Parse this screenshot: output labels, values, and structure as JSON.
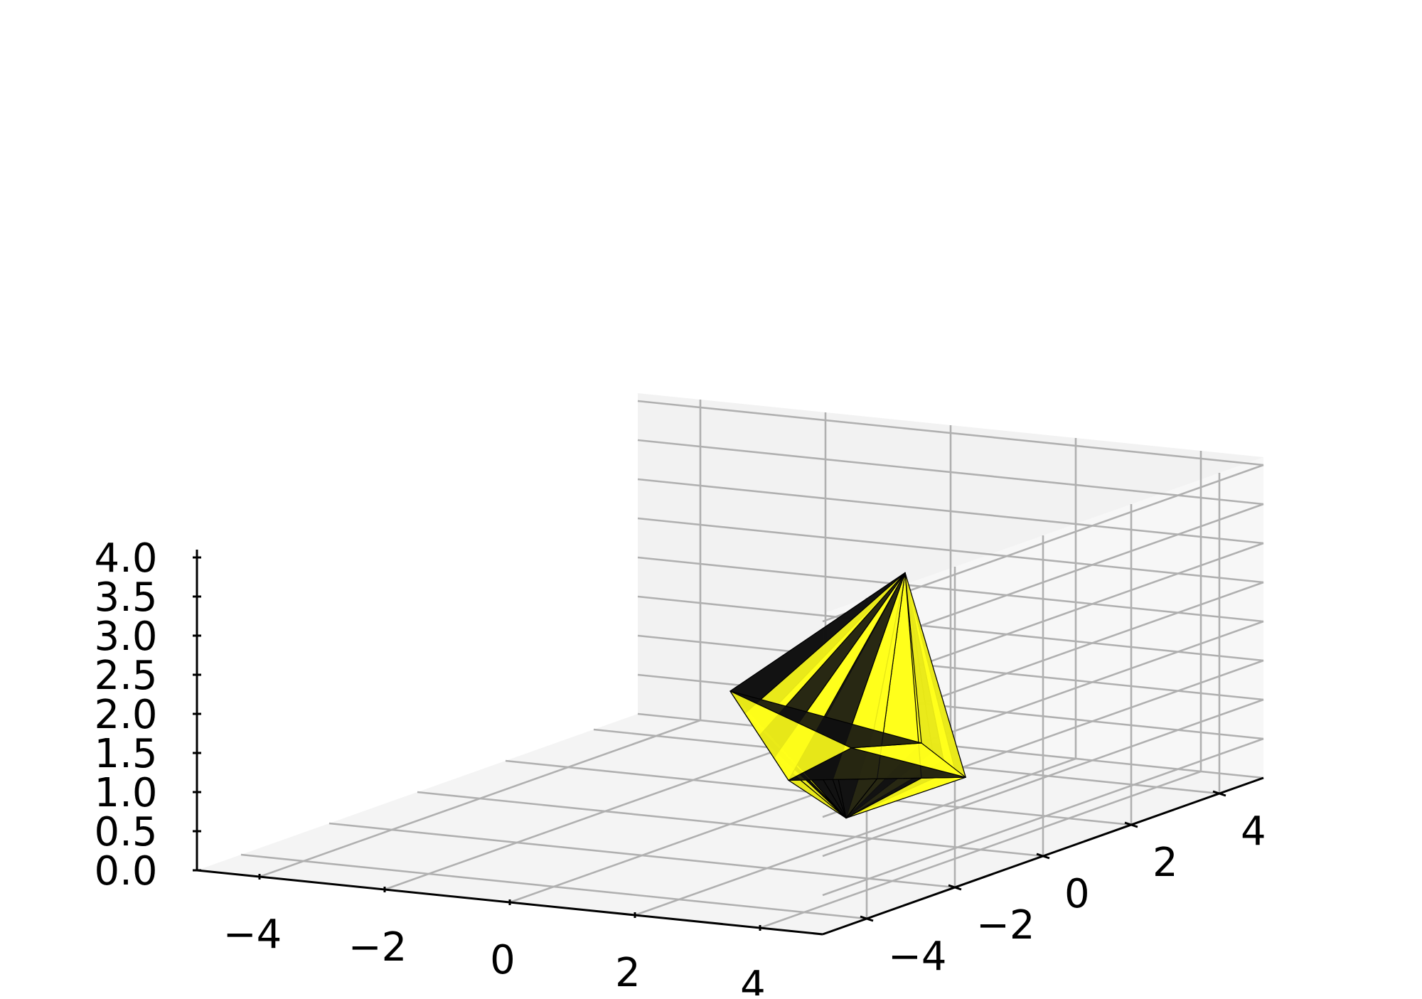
{
  "chart_data": {
    "type": "surface3d",
    "title": "",
    "xlabel": "",
    "ylabel": "",
    "zlabel": "",
    "xlim": [
      -5,
      5
    ],
    "ylim": [
      -5,
      5
    ],
    "zlim": [
      0,
      4.1
    ],
    "x_ticks": [
      -4,
      -2,
      0,
      2,
      4
    ],
    "x_tick_labels": [
      "−4",
      "−2",
      "0",
      "2",
      "4"
    ],
    "y_ticks": [
      -4,
      -2,
      0,
      2,
      4
    ],
    "y_tick_labels": [
      "−4",
      "−2",
      "0",
      "2",
      "4"
    ],
    "z_ticks": [
      0,
      0.5,
      1,
      1.5,
      2,
      2.5,
      3,
      3.5,
      4
    ],
    "z_tick_labels": [
      "0.0",
      "0.5",
      "1.0",
      "1.5",
      "2.0",
      "2.5",
      "3.0",
      "3.5",
      "4.0"
    ],
    "grid": true,
    "surface": {
      "shape": "faceted spinning-top polyhedron",
      "colors": [
        "#ffff1a",
        "#111111"
      ],
      "edge_color": "#000000",
      "base_point": [
        1.5,
        0.5,
        0.1
      ],
      "apex_point": [
        3.5,
        -1.0,
        3.7
      ],
      "rim_points": [
        [
          0,
          0,
          1.7
        ],
        [
          2.2,
          -1.8,
          1.1
        ],
        [
          3.2,
          0.8,
          0.7
        ],
        [
          2.0,
          1.5,
          0.9
        ]
      ]
    }
  }
}
